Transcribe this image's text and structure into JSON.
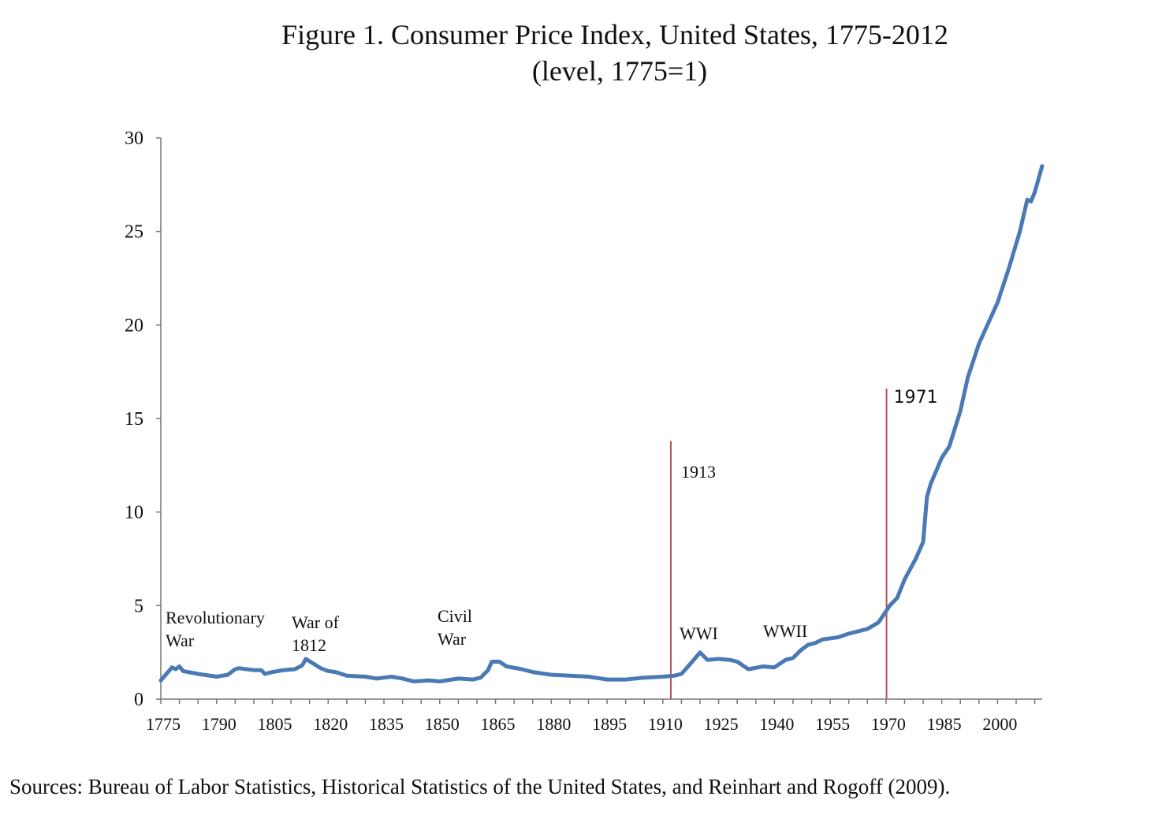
{
  "chart_data": {
    "type": "line",
    "title": "Figure 1. Consumer Price Index, United States, 1775-2012",
    "subtitle": "(level, 1775=1)",
    "source": "Sources: Bureau of Labor Statistics, Historical Statistics of the United States, and Reinhart and Rogoff (2009).",
    "xlabel": "",
    "ylabel": "",
    "xlim": [
      1775,
      2012
    ],
    "ylim": [
      0,
      30
    ],
    "x_ticks": [
      1775,
      1790,
      1805,
      1820,
      1835,
      1850,
      1865,
      1880,
      1895,
      1910,
      1925,
      1940,
      1955,
      1970,
      1985,
      2000
    ],
    "y_ticks": [
      0,
      5,
      10,
      15,
      20,
      25,
      30
    ],
    "grid": false,
    "line_color": "#4a7ab5",
    "marker_line_color": "#b5545a",
    "series": [
      {
        "x": [
          1775,
          1778,
          1779,
          1780,
          1781,
          1785,
          1790,
          1793,
          1795,
          1796,
          1800,
          1802,
          1803,
          1805,
          1808,
          1811,
          1813,
          1814,
          1816,
          1818,
          1820,
          1822,
          1825,
          1830,
          1833,
          1837,
          1840,
          1843,
          1847,
          1850,
          1855,
          1859,
          1861,
          1863,
          1864,
          1866,
          1868,
          1872,
          1875,
          1880,
          1885,
          1890,
          1895,
          1900,
          1905,
          1910,
          1913,
          1915,
          1917,
          1920,
          1922,
          1925,
          1928,
          1930,
          1933,
          1937,
          1940,
          1943,
          1945,
          1947,
          1949,
          1951,
          1953,
          1957,
          1960,
          1965,
          1968,
          1970,
          1971,
          1973,
          1975,
          1978,
          1980,
          1981,
          1982,
          1985,
          1987,
          1990,
          1992,
          1995,
          2000,
          2003,
          2006,
          2008,
          2009,
          2010,
          2012
        ],
        "y": [
          1.0,
          1.7,
          1.6,
          1.75,
          1.5,
          1.35,
          1.2,
          1.3,
          1.6,
          1.65,
          1.55,
          1.55,
          1.35,
          1.45,
          1.55,
          1.6,
          1.8,
          2.15,
          1.9,
          1.65,
          1.5,
          1.45,
          1.25,
          1.2,
          1.1,
          1.2,
          1.1,
          0.95,
          1.0,
          0.95,
          1.1,
          1.05,
          1.15,
          1.55,
          2.0,
          2.0,
          1.75,
          1.6,
          1.45,
          1.3,
          1.25,
          1.2,
          1.05,
          1.05,
          1.15,
          1.2,
          1.25,
          1.35,
          1.8,
          2.5,
          2.1,
          2.15,
          2.1,
          2.0,
          1.6,
          1.75,
          1.7,
          2.1,
          2.2,
          2.6,
          2.9,
          3.0,
          3.2,
          3.3,
          3.5,
          3.75,
          4.1,
          4.7,
          5.0,
          5.4,
          6.4,
          7.5,
          8.4,
          10.8,
          11.5,
          12.9,
          13.5,
          15.4,
          17.2,
          19.0,
          21.2,
          23.0,
          25.0,
          26.7,
          26.6,
          27.1,
          28.5
        ]
      }
    ],
    "vertical_markers": [
      {
        "year": 1913,
        "label": "1913",
        "top": 13.8
      },
      {
        "year": 1971,
        "label": "1971",
        "top": 16.6
      }
    ],
    "annotations": [
      {
        "lines": [
          "Revolutionary",
          "War"
        ]
      },
      {
        "lines": [
          "War of",
          "1812"
        ]
      },
      {
        "lines": [
          "Civil",
          "War"
        ]
      },
      {
        "lines": [
          "WWI"
        ]
      },
      {
        "lines": [
          "WWII"
        ]
      }
    ]
  }
}
